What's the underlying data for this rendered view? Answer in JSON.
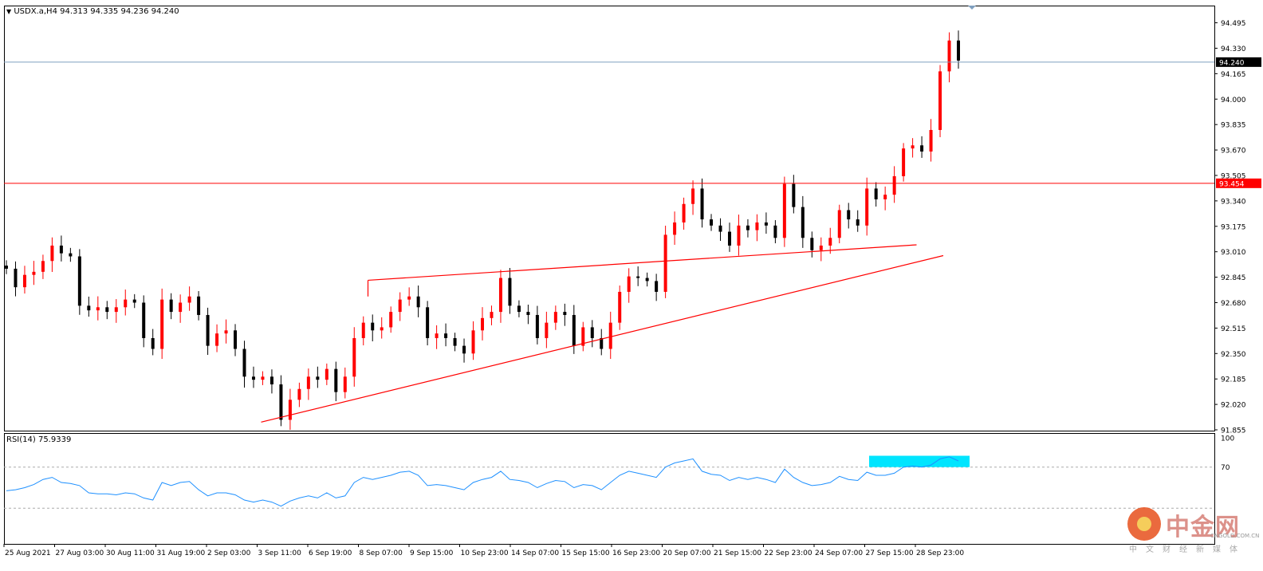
{
  "header": {
    "symbol": "USDX.a,H4",
    "ohlc": "94.313 94.335 94.236 94.240",
    "rsi_label": "RSI(14) 75.9339"
  },
  "watermark": {
    "name": "中金网",
    "url": "CNGOLD.COM.CN",
    "subtitle": "中文财经新媒体"
  },
  "chart_data": [
    {
      "type": "candlestick",
      "title": "USDX.a,H4",
      "ylim": [
        91.855,
        94.56
      ],
      "y_ticks": [
        "94.495",
        "94.330",
        "94.165",
        "94.000",
        "93.835",
        "93.670",
        "93.505",
        "93.340",
        "93.175",
        "93.010",
        "92.845",
        "92.680",
        "92.515",
        "92.350",
        "92.185",
        "92.020",
        "91.855"
      ],
      "x_ticks": [
        "25 Aug 2021",
        "27 Aug 03:00",
        "30 Aug 11:00",
        "31 Aug 19:00",
        "2 Sep 03:00",
        "3 Sep 11:00",
        "6 Sep 19:00",
        "8 Sep 07:00",
        "9 Sep 15:00",
        "10 Sep 23:00",
        "14 Sep 07:00",
        "15 Sep 15:00",
        "16 Sep 23:00",
        "20 Sep 07:00",
        "21 Sep 15:00",
        "22 Sep 23:00",
        "24 Sep 07:00",
        "27 Sep 15:00",
        "28 Sep 23:00"
      ],
      "current_price": "94.240",
      "resistance_level": "93.454",
      "colors": {
        "up": "#ff0000",
        "down": "#000000",
        "line": "#ff0000",
        "current": "#7f9fbf"
      },
      "close_path": [
        92.9,
        92.78,
        92.86,
        92.88,
        92.95,
        93.05,
        93.0,
        92.98,
        92.66,
        92.63,
        92.65,
        92.62,
        92.65,
        92.7,
        92.68,
        92.45,
        92.38,
        92.7,
        92.62,
        92.68,
        92.72,
        92.6,
        92.4,
        92.48,
        92.5,
        92.38,
        92.2,
        92.18,
        92.2,
        92.15,
        91.92,
        92.05,
        92.12,
        92.2,
        92.18,
        92.25,
        92.1,
        92.2,
        92.45,
        92.55,
        92.5,
        92.52,
        92.62,
        92.7,
        92.72,
        92.65,
        92.45,
        92.48,
        92.45,
        92.4,
        92.35,
        92.5,
        92.58,
        92.62,
        92.84,
        92.66,
        92.62,
        92.6,
        92.45,
        92.55,
        92.62,
        92.6,
        92.4,
        92.52,
        92.45,
        92.38,
        92.55,
        92.75,
        92.85,
        92.84,
        92.82,
        92.75,
        93.12,
        93.2,
        93.32,
        93.42,
        93.22,
        93.18,
        93.14,
        93.05,
        93.18,
        93.15,
        93.2,
        93.18,
        93.1,
        93.45,
        93.3,
        93.1,
        93.02,
        93.05,
        93.1,
        93.28,
        93.22,
        93.18,
        93.42,
        93.35,
        93.38,
        93.5,
        93.68,
        93.7,
        93.66,
        93.8,
        94.18,
        94.38,
        94.25
      ],
      "trendlines": [
        {
          "from": [
            "3 Sep 11:00",
            91.905
          ],
          "to": [
            "28 Sep 23:00",
            92.985
          ]
        },
        {
          "from": [
            "8 Sep 07:00",
            92.825
          ],
          "to": [
            "27 Sep 15:00",
            93.055
          ]
        }
      ]
    },
    {
      "type": "line",
      "title": "RSI(14) 75.9339",
      "ylim": [
        0,
        100
      ],
      "y_ticks": [
        "100",
        "70"
      ],
      "levels": [
        70,
        30
      ],
      "color": "#1e90ff",
      "highlight_color": "#00e5ff",
      "values": [
        47,
        48,
        50,
        53,
        58,
        60,
        55,
        54,
        52,
        45,
        44,
        44,
        43,
        45,
        44,
        40,
        38,
        55,
        52,
        55,
        56,
        48,
        42,
        45,
        45,
        43,
        38,
        36,
        38,
        36,
        32,
        37,
        40,
        42,
        40,
        45,
        40,
        42,
        55,
        60,
        58,
        60,
        62,
        65,
        66,
        62,
        52,
        53,
        52,
        50,
        48,
        55,
        58,
        60,
        66,
        58,
        57,
        55,
        50,
        54,
        57,
        56,
        50,
        53,
        52,
        48,
        55,
        62,
        66,
        64,
        62,
        60,
        70,
        74,
        76,
        78,
        66,
        63,
        62,
        57,
        60,
        58,
        60,
        58,
        55,
        68,
        60,
        55,
        52,
        53,
        55,
        61,
        58,
        57,
        65,
        62,
        62,
        64,
        70,
        71,
        70,
        72,
        78,
        80,
        76
      ]
    }
  ]
}
